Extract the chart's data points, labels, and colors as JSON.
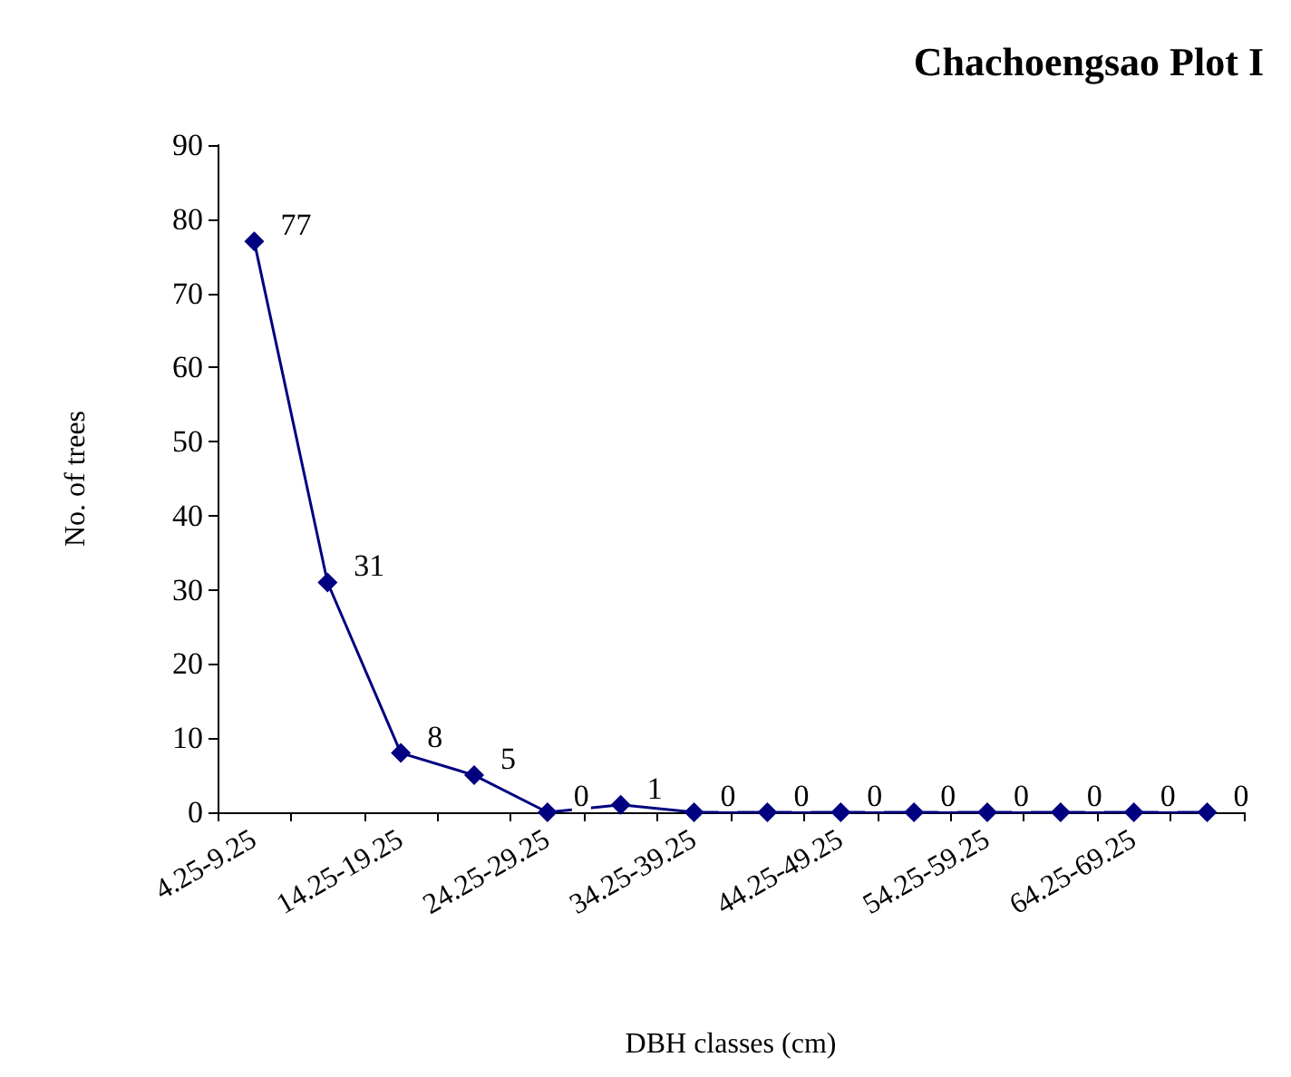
{
  "chart_data": {
    "type": "line",
    "title": "Chachoengsao Plot I",
    "xlabel": "DBH classes (cm)",
    "ylabel": "No. of trees",
    "categories": [
      "4.25-9.25",
      null,
      "14.25-19.25",
      null,
      "24.25-29.25",
      null,
      "34.25-39.25",
      null,
      "44.25-49.25",
      null,
      "54.25-59.25",
      null,
      "64.25-69.25",
      null
    ],
    "series": [
      {
        "color": "#000080",
        "values": [
          77,
          31,
          8,
          5,
          0,
          1,
          0,
          0,
          0,
          0,
          0,
          0,
          0,
          0
        ]
      }
    ],
    "ylim": [
      0,
      90
    ],
    "yticks": [
      0,
      10,
      20,
      30,
      40,
      50,
      60,
      70,
      80,
      90
    ],
    "grid": false,
    "marker": "diamond",
    "line_style": "solid",
    "data_labels": true
  }
}
